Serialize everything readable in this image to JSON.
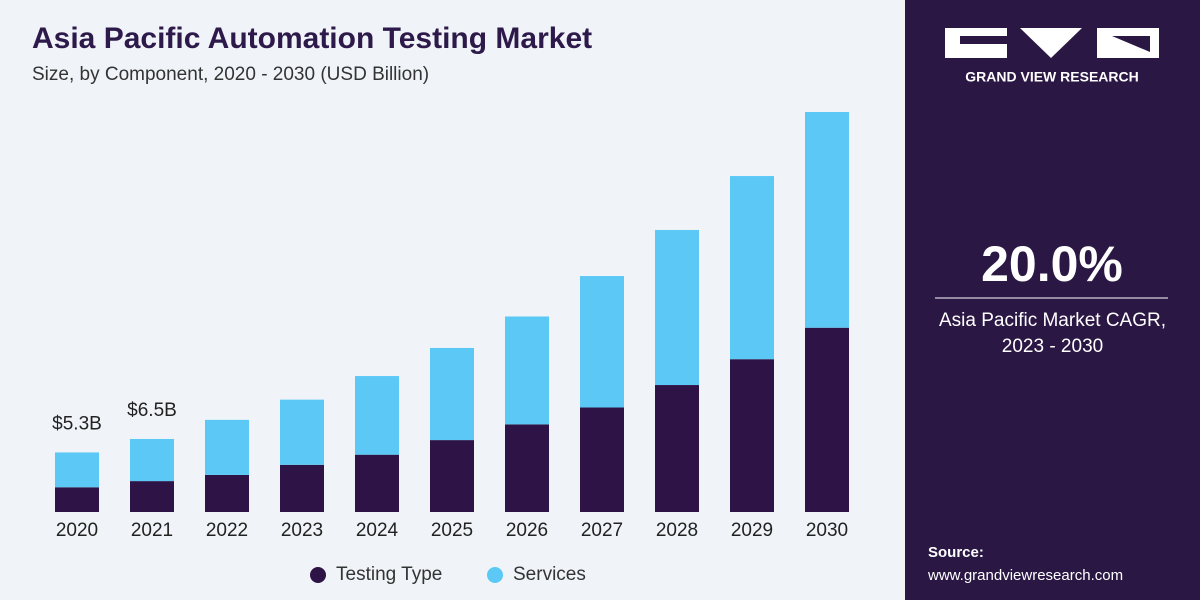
{
  "chart_data": {
    "type": "stacked-bar",
    "title": "Asia Pacific Automation Testing Market",
    "subtitle": "Size, by Component, 2020 - 2030 (USD Billion)",
    "categories": [
      "2020",
      "2021",
      "2022",
      "2023",
      "2024",
      "2025",
      "2026",
      "2027",
      "2028",
      "2029",
      "2030"
    ],
    "series": [
      {
        "name": "Testing Type",
        "color": "#2e1446",
        "values": [
          2.2,
          2.75,
          3.3,
          4.2,
          5.1,
          6.4,
          7.8,
          9.3,
          11.3,
          13.6,
          16.4
        ]
      },
      {
        "name": "Services",
        "color": "#5bc8f5",
        "values": [
          3.1,
          3.75,
          4.9,
          5.8,
          7.0,
          8.2,
          9.6,
          11.7,
          13.8,
          16.3,
          19.2
        ]
      }
    ],
    "totals": {
      "values": [
        5.3,
        6.5
      ],
      "value_labels": [
        "$5.3B",
        "$6.5B"
      ]
    },
    "legend": "bottom"
  },
  "panel": {
    "brand": "GRAND VIEW RESEARCH",
    "cagr": "20.0%",
    "cagr_label": "Asia Pacific Market CAGR, 2023 - 2030",
    "source_label": "Source:",
    "source_url": "www.grandviewresearch.com"
  }
}
